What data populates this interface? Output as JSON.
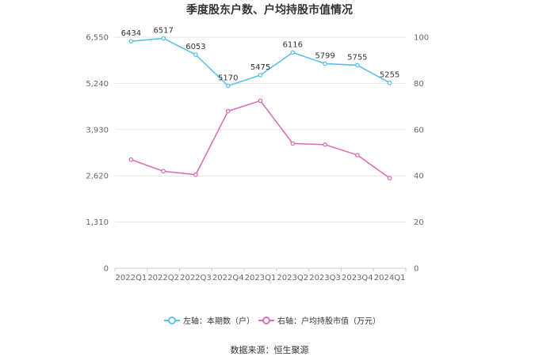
{
  "chart_data": {
    "type": "line",
    "title": "季度股东户数、户均持股市值情况",
    "categories": [
      "2022Q1",
      "2022Q2",
      "2022Q3",
      "2022Q4",
      "2023Q1",
      "2023Q2",
      "2023Q3",
      "2023Q4",
      "2024Q1"
    ],
    "left_axis": {
      "ticks": [
        "0",
        "1,310",
        "2,620",
        "3,930",
        "5,240",
        "6,550"
      ],
      "ylim": [
        0,
        6550
      ]
    },
    "right_axis": {
      "ticks": [
        "0",
        "20",
        "40",
        "60",
        "80",
        "100"
      ],
      "ylim": [
        0,
        100
      ]
    },
    "grid": true,
    "legend_position": "bottom",
    "series": [
      {
        "name": "左轴：本期数（户）",
        "axis": "left",
        "color": "#5bc0eb",
        "values": [
          6434,
          6517,
          6053,
          5170,
          5475,
          6116,
          5799,
          5755,
          5255
        ],
        "labels": [
          "6434",
          "6517",
          "6053",
          "5170",
          "5475",
          "6116",
          "5799",
          "5755",
          "5255"
        ]
      },
      {
        "name": "右轴：户均持股市值（万元）",
        "axis": "right",
        "color": "#d770b8",
        "values": [
          47,
          42,
          40.5,
          68,
          72.5,
          54,
          53.5,
          49,
          39
        ]
      }
    ],
    "source": "数据来源：恒生聚源"
  }
}
